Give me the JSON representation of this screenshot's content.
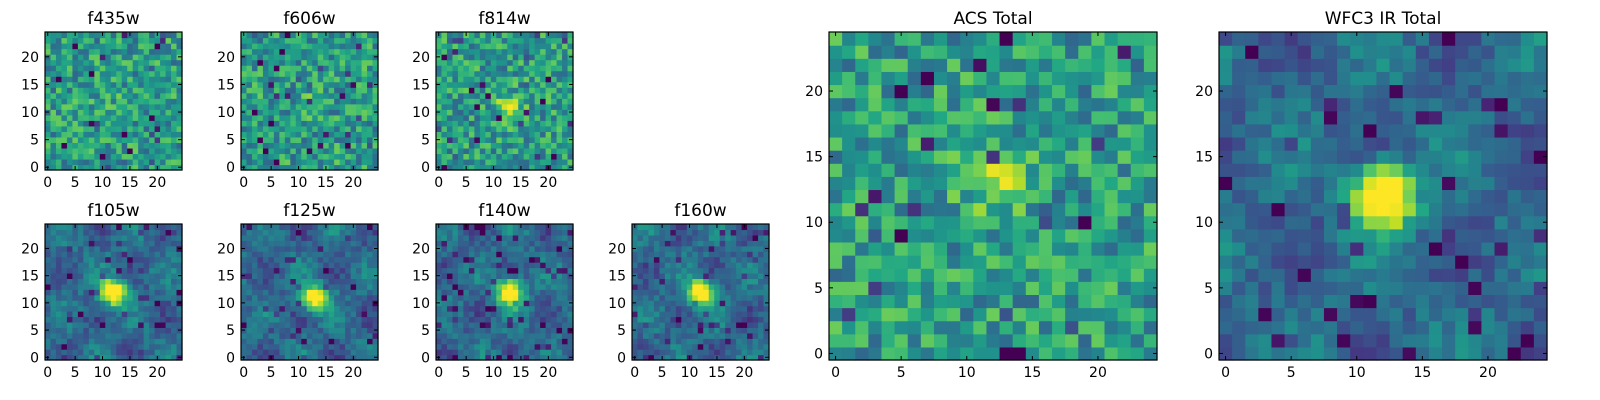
{
  "chart_data": [
    {
      "type": "heatmap",
      "title": "f435w",
      "xticks": [
        0,
        5,
        10,
        15,
        20
      ],
      "yticks": [
        0,
        5,
        10,
        15,
        20
      ],
      "xlim": [
        0,
        24
      ],
      "ylim": [
        0,
        24
      ],
      "grid": 25,
      "pattern": "noise",
      "seed": 11,
      "peak": [
        12,
        12
      ],
      "peak_strength": 0.05,
      "colormap": "viridis",
      "colors": {
        "low": "#440154",
        "high": "#fde725"
      }
    },
    {
      "type": "heatmap",
      "title": "f606w",
      "xticks": [
        0,
        5,
        10,
        15,
        20
      ],
      "yticks": [
        0,
        5,
        10,
        15,
        20
      ],
      "xlim": [
        0,
        24
      ],
      "ylim": [
        0,
        24
      ],
      "grid": 25,
      "pattern": "noise",
      "seed": 23,
      "peak": [
        12,
        12
      ],
      "peak_strength": 0.08,
      "colormap": "viridis"
    },
    {
      "type": "heatmap",
      "title": "f814w",
      "xticks": [
        0,
        5,
        10,
        15,
        20
      ],
      "yticks": [
        0,
        5,
        10,
        15,
        20
      ],
      "xlim": [
        0,
        24
      ],
      "ylim": [
        0,
        24
      ],
      "grid": 25,
      "pattern": "noise",
      "seed": 37,
      "peak": [
        13,
        11
      ],
      "peak_strength": 0.35,
      "colormap": "viridis"
    },
    {
      "type": "heatmap",
      "title": "f105w",
      "xticks": [
        0,
        5,
        10,
        15,
        20
      ],
      "yticks": [
        0,
        5,
        10,
        15,
        20
      ],
      "xlim": [
        0,
        24
      ],
      "ylim": [
        0,
        24
      ],
      "grid": 25,
      "pattern": "source",
      "seed": 41,
      "peak": [
        12,
        12
      ],
      "peak_strength": 0.9,
      "colormap": "viridis"
    },
    {
      "type": "heatmap",
      "title": "f125w",
      "xticks": [
        0,
        5,
        10,
        15,
        20
      ],
      "yticks": [
        0,
        5,
        10,
        15,
        20
      ],
      "xlim": [
        0,
        24
      ],
      "ylim": [
        0,
        24
      ],
      "grid": 25,
      "pattern": "source",
      "seed": 53,
      "peak": [
        13,
        11
      ],
      "peak_strength": 0.85,
      "colormap": "viridis"
    },
    {
      "type": "heatmap",
      "title": "f140w",
      "xticks": [
        0,
        5,
        10,
        15,
        20
      ],
      "yticks": [
        0,
        5,
        10,
        15,
        20
      ],
      "xlim": [
        0,
        24
      ],
      "ylim": [
        0,
        24
      ],
      "grid": 25,
      "pattern": "source",
      "seed": 67,
      "peak": [
        13,
        12
      ],
      "peak_strength": 0.9,
      "colormap": "viridis"
    },
    {
      "type": "heatmap",
      "title": "f160w",
      "xticks": [
        0,
        5,
        10,
        15,
        20
      ],
      "yticks": [
        0,
        5,
        10,
        15,
        20
      ],
      "xlim": [
        0,
        24
      ],
      "ylim": [
        0,
        24
      ],
      "grid": 25,
      "pattern": "source",
      "seed": 79,
      "peak": [
        12,
        12
      ],
      "peak_strength": 0.9,
      "colormap": "viridis"
    },
    {
      "type": "heatmap",
      "title": "ACS Total",
      "xticks": [
        0,
        5,
        10,
        15,
        20
      ],
      "yticks": [
        0,
        5,
        10,
        15,
        20
      ],
      "xlim": [
        0,
        24
      ],
      "ylim": [
        0,
        24
      ],
      "grid": 25,
      "pattern": "noise",
      "seed": 97,
      "peak": [
        12,
        13
      ],
      "peak_strength": 0.3,
      "colormap": "viridis"
    },
    {
      "type": "heatmap",
      "title": "WFC3 IR Total",
      "xticks": [
        0,
        5,
        10,
        15,
        20
      ],
      "yticks": [
        0,
        5,
        10,
        15,
        20
      ],
      "xlim": [
        0,
        24
      ],
      "ylim": [
        0,
        24
      ],
      "grid": 25,
      "pattern": "source",
      "seed": 131,
      "peak": [
        12,
        12
      ],
      "peak_strength": 1.0,
      "colormap": "viridis"
    }
  ]
}
